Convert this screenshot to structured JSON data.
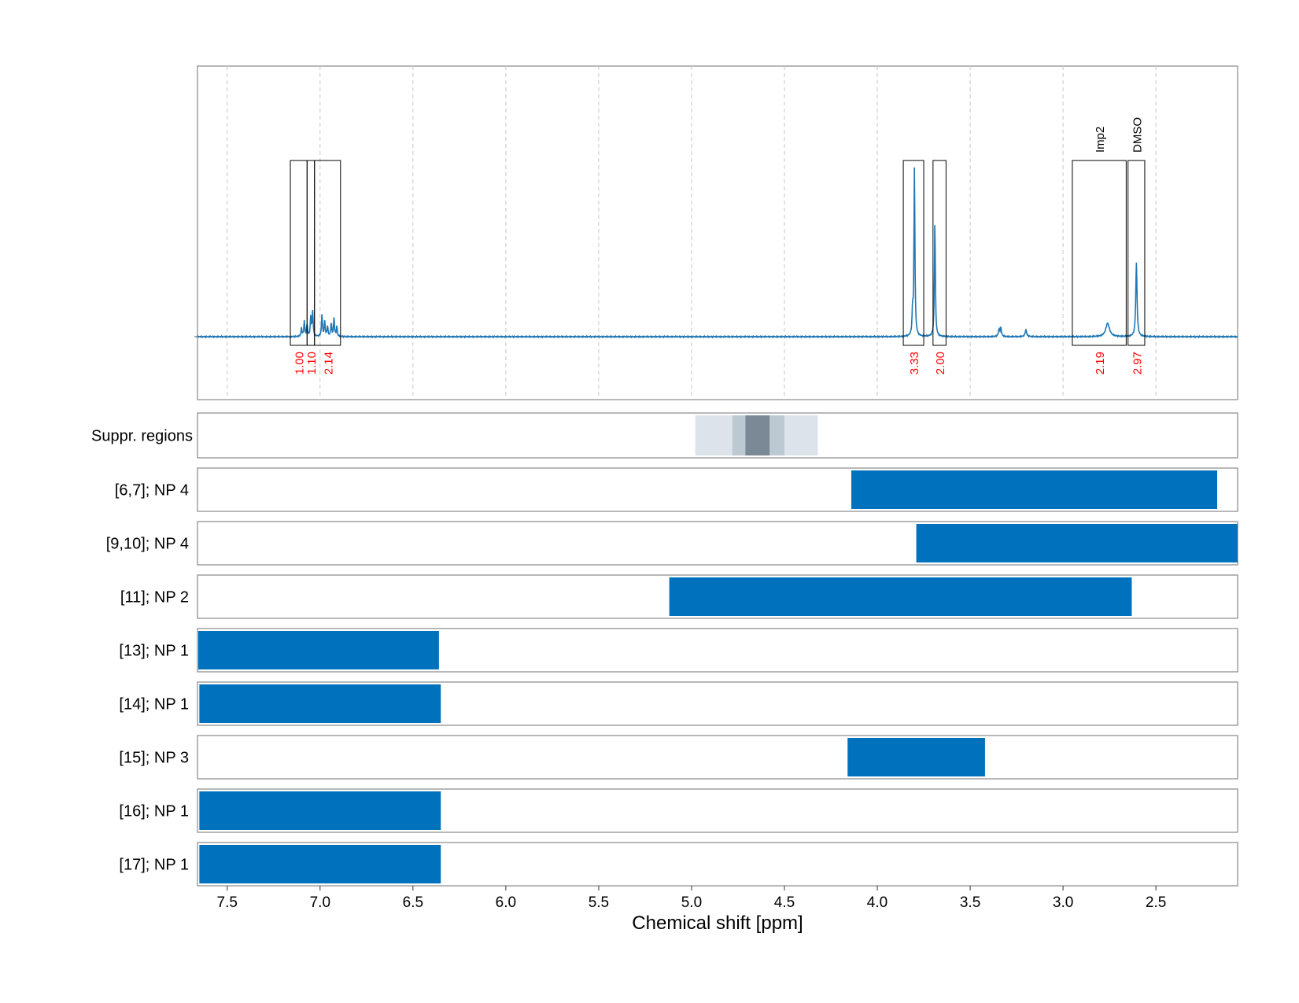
{
  "chart_data": {
    "type": "line",
    "xlabel": "Chemical shift [ppm]",
    "xlim": [
      7.66,
      2.06
    ],
    "x_reversed": true,
    "xticks": [
      "7.5",
      "7.0",
      "6.5",
      "6.0",
      "5.5",
      "5.0",
      "4.5",
      "4.0",
      "3.5",
      "3.0",
      "2.5"
    ],
    "grid": "vertical dashed",
    "colors": {
      "spectrum": "#1f77b4",
      "bar": "#0072bd",
      "integral_label": "#ff0000",
      "frame": "#000000"
    },
    "spectrum": {
      "baseline": 0,
      "peaks": [
        {
          "x": 7.1,
          "y": 0.05,
          "w": 0.003
        },
        {
          "x": 7.085,
          "y": 0.09,
          "w": 0.003
        },
        {
          "x": 7.07,
          "y": 0.07,
          "w": 0.003
        },
        {
          "x": 7.05,
          "y": 0.12,
          "w": 0.003
        },
        {
          "x": 7.04,
          "y": 0.15,
          "w": 0.003
        },
        {
          "x": 6.99,
          "y": 0.13,
          "w": 0.003
        },
        {
          "x": 6.975,
          "y": 0.09,
          "w": 0.003
        },
        {
          "x": 6.96,
          "y": 0.06,
          "w": 0.003
        },
        {
          "x": 6.94,
          "y": 0.08,
          "w": 0.003
        },
        {
          "x": 6.925,
          "y": 0.11,
          "w": 0.003
        },
        {
          "x": 6.91,
          "y": 0.06,
          "w": 0.003
        },
        {
          "x": 3.8,
          "y": 1.0,
          "w": 0.003
        },
        {
          "x": 3.81,
          "y": 0.14,
          "w": 0.003
        },
        {
          "x": 3.69,
          "y": 0.68,
          "w": 0.003
        },
        {
          "x": 3.345,
          "y": 0.04,
          "w": 0.004
        },
        {
          "x": 3.335,
          "y": 0.05,
          "w": 0.004
        },
        {
          "x": 3.2,
          "y": 0.04,
          "w": 0.005
        },
        {
          "x": 2.76,
          "y": 0.08,
          "w": 0.012
        },
        {
          "x": 2.605,
          "y": 0.44,
          "w": 0.004
        }
      ]
    },
    "integrals": [
      {
        "x_from": 7.16,
        "x_to": 7.07,
        "value": "1.00"
      },
      {
        "x_from": 7.07,
        "x_to": 7.03,
        "value": "1.10"
      },
      {
        "x_from": 7.03,
        "x_to": 6.89,
        "value": "2.14"
      },
      {
        "x_from": 3.86,
        "x_to": 3.75,
        "value": "3.33"
      },
      {
        "x_from": 3.7,
        "x_to": 3.63,
        "value": "2.00"
      },
      {
        "x_from": 2.95,
        "x_to": 2.66,
        "value": "2.19",
        "label": "Imp2"
      },
      {
        "x_from": 2.65,
        "x_to": 2.56,
        "value": "2.97",
        "label": "DMSO"
      }
    ],
    "suppression": {
      "label": "Suppr. regions",
      "bands": [
        {
          "x_from": 4.98,
          "x_to": 4.32,
          "level": 1
        },
        {
          "x_from": 4.78,
          "x_to": 4.5,
          "level": 2
        },
        {
          "x_from": 4.71,
          "x_to": 4.58,
          "level": 3
        }
      ],
      "level_colors": [
        "#dde3ea",
        "#bcc8d2",
        "#7a8995"
      ]
    },
    "ranges": [
      {
        "label": "[6,7]; NP 4",
        "x_from": 4.14,
        "x_to": 2.17
      },
      {
        "label": "[9,10]; NP 4",
        "x_from": 3.79,
        "x_to": 2.06
      },
      {
        "label": "[11]; NP 2",
        "x_from": 5.12,
        "x_to": 2.63
      },
      {
        "label": "[13]; NP 1",
        "x_from": 7.66,
        "x_to": 6.36
      },
      {
        "label": "[14]; NP 1",
        "x_from": 7.65,
        "x_to": 6.35
      },
      {
        "label": "[15]; NP 3",
        "x_from": 4.16,
        "x_to": 3.42
      },
      {
        "label": "[16]; NP 1",
        "x_from": 7.65,
        "x_to": 6.35
      },
      {
        "label": "[17]; NP 1",
        "x_from": 7.65,
        "x_to": 6.35
      }
    ]
  }
}
